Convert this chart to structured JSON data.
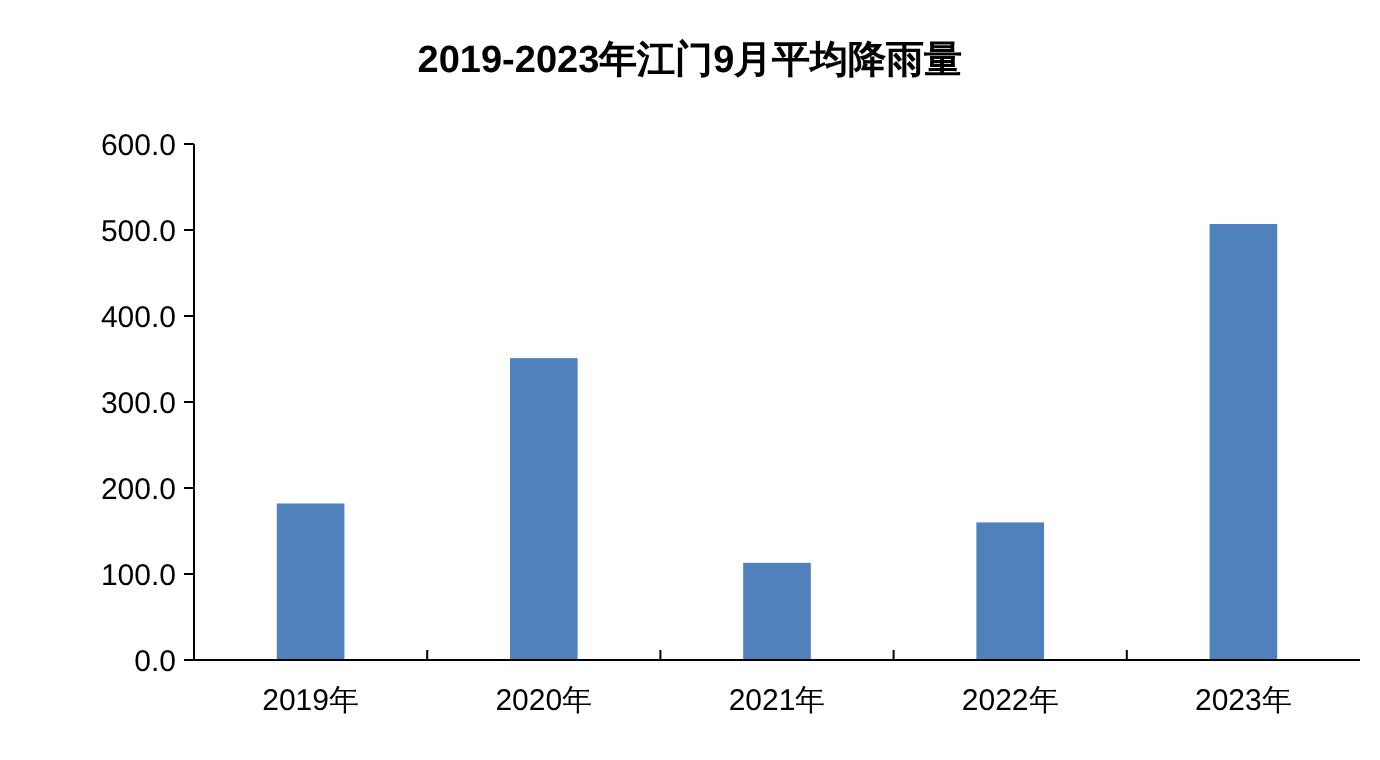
{
  "chart_data": {
    "type": "bar",
    "title": "2019-2023年江门9月平均降雨量",
    "categories": [
      "2019年",
      "2020年",
      "2021年",
      "2022年",
      "2023年"
    ],
    "values": [
      182,
      351,
      113,
      160,
      507
    ],
    "color": "#4f81bd",
    "ylim": [
      0,
      600
    ],
    "yticks": [
      {
        "value": 0,
        "label": "0.0"
      },
      {
        "value": 100,
        "label": "100.0"
      },
      {
        "value": 200,
        "label": "200.0"
      },
      {
        "value": 300,
        "label": "300.0"
      },
      {
        "value": 400,
        "label": "400.0"
      },
      {
        "value": 500,
        "label": "500.0"
      },
      {
        "value": 600,
        "label": "600.0"
      }
    ],
    "grid": false
  }
}
